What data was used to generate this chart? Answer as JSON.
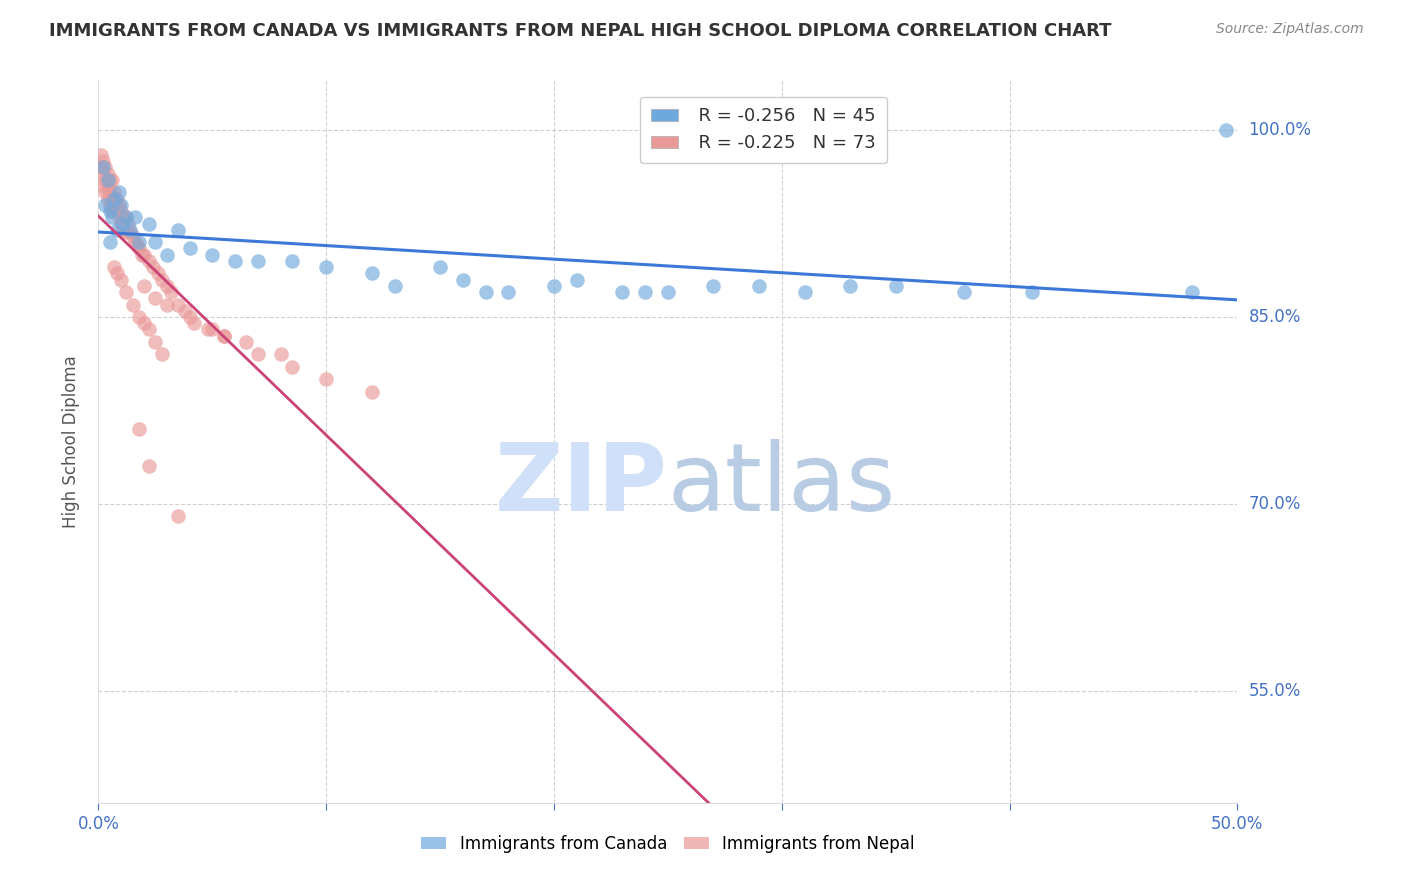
{
  "title": "IMMIGRANTS FROM CANADA VS IMMIGRANTS FROM NEPAL HIGH SCHOOL DIPLOMA CORRELATION CHART",
  "source": "Source: ZipAtlas.com",
  "ylabel": "High School Diploma",
  "ytick_labels": [
    "100.0%",
    "85.0%",
    "70.0%",
    "55.0%"
  ],
  "ytick_values": [
    1.0,
    0.85,
    0.7,
    0.55
  ],
  "xlim": [
    0.0,
    0.5
  ],
  "ylim": [
    0.46,
    1.04
  ],
  "canada_R": -0.256,
  "canada_N": 45,
  "nepal_R": -0.225,
  "nepal_N": 73,
  "canada_color": "#6fa8dc",
  "nepal_color": "#ea9999",
  "canada_line_color": "#3c78d8",
  "nepal_line_color": "#cc4477",
  "watermark_zip_color": "#d0e0f8",
  "watermark_atlas_color": "#b8cce4",
  "canada_points_x": [
    0.002,
    0.003,
    0.004,
    0.005,
    0.005,
    0.006,
    0.007,
    0.008,
    0.009,
    0.01,
    0.011,
    0.012,
    0.014,
    0.016,
    0.018,
    0.022,
    0.025,
    0.03,
    0.035,
    0.04,
    0.05,
    0.06,
    0.07,
    0.085,
    0.1,
    0.12,
    0.15,
    0.18,
    0.21,
    0.25,
    0.13,
    0.16,
    0.2,
    0.24,
    0.29,
    0.33,
    0.23,
    0.27,
    0.17,
    0.31,
    0.35,
    0.38,
    0.41,
    0.48,
    0.495
  ],
  "canada_points_y": [
    0.97,
    0.94,
    0.96,
    0.935,
    0.91,
    0.93,
    0.945,
    0.92,
    0.95,
    0.94,
    0.925,
    0.93,
    0.92,
    0.93,
    0.91,
    0.925,
    0.91,
    0.9,
    0.92,
    0.905,
    0.9,
    0.895,
    0.895,
    0.895,
    0.89,
    0.885,
    0.89,
    0.87,
    0.88,
    0.87,
    0.875,
    0.88,
    0.875,
    0.87,
    0.875,
    0.875,
    0.87,
    0.875,
    0.87,
    0.87,
    0.875,
    0.87,
    0.87,
    0.87,
    1.0
  ],
  "nepal_points_x": [
    0.001,
    0.001,
    0.002,
    0.002,
    0.002,
    0.003,
    0.003,
    0.003,
    0.004,
    0.004,
    0.004,
    0.005,
    0.005,
    0.005,
    0.006,
    0.006,
    0.006,
    0.007,
    0.007,
    0.008,
    0.008,
    0.009,
    0.009,
    0.01,
    0.01,
    0.011,
    0.011,
    0.012,
    0.012,
    0.013,
    0.014,
    0.015,
    0.016,
    0.017,
    0.018,
    0.019,
    0.02,
    0.022,
    0.024,
    0.026,
    0.028,
    0.03,
    0.032,
    0.035,
    0.038,
    0.042,
    0.048,
    0.055,
    0.065,
    0.08,
    0.02,
    0.025,
    0.03,
    0.04,
    0.05,
    0.055,
    0.07,
    0.085,
    0.1,
    0.12,
    0.007,
    0.008,
    0.01,
    0.012,
    0.015,
    0.018,
    0.02,
    0.022,
    0.025,
    0.028,
    0.018,
    0.022,
    0.035
  ],
  "nepal_points_y": [
    0.98,
    0.97,
    0.975,
    0.965,
    0.955,
    0.97,
    0.96,
    0.95,
    0.965,
    0.955,
    0.945,
    0.96,
    0.95,
    0.94,
    0.96,
    0.945,
    0.935,
    0.95,
    0.94,
    0.945,
    0.935,
    0.94,
    0.93,
    0.935,
    0.925,
    0.93,
    0.92,
    0.93,
    0.918,
    0.925,
    0.918,
    0.915,
    0.91,
    0.908,
    0.905,
    0.9,
    0.9,
    0.895,
    0.89,
    0.885,
    0.88,
    0.875,
    0.87,
    0.86,
    0.855,
    0.845,
    0.84,
    0.835,
    0.83,
    0.82,
    0.875,
    0.865,
    0.86,
    0.85,
    0.84,
    0.835,
    0.82,
    0.81,
    0.8,
    0.79,
    0.89,
    0.885,
    0.88,
    0.87,
    0.86,
    0.85,
    0.845,
    0.84,
    0.83,
    0.82,
    0.76,
    0.73,
    0.69
  ],
  "nepal_line_x_solid_end": 0.3,
  "canada_line_x_solid_end": 0.5
}
